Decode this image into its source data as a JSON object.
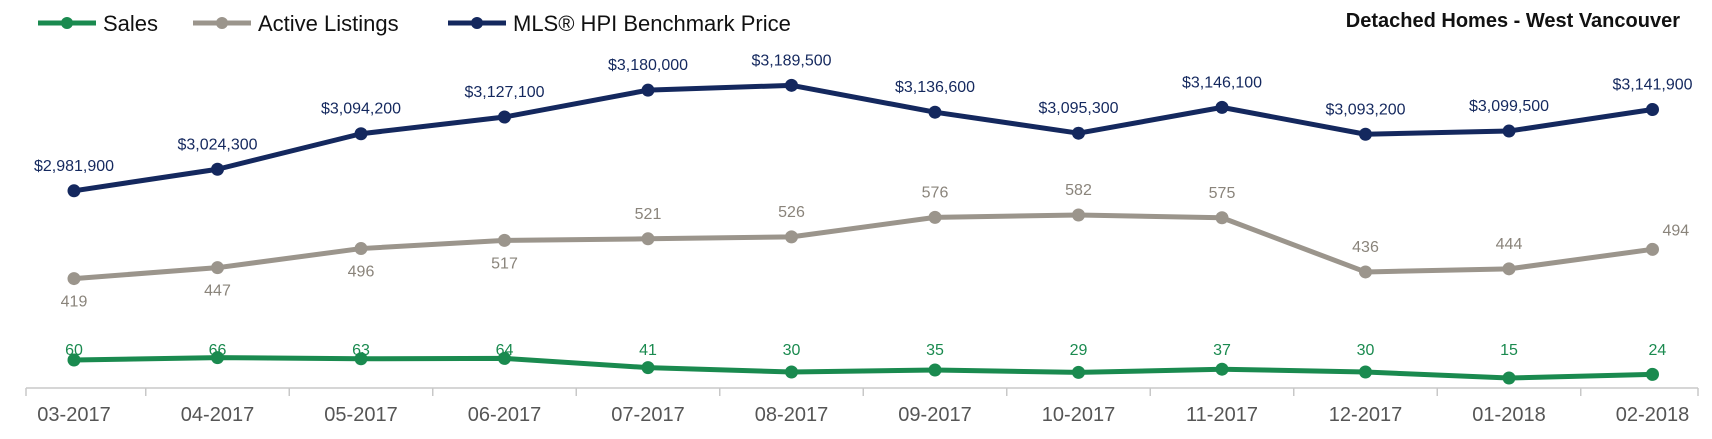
{
  "chart_data": {
    "type": "line",
    "title": "Detached Homes - West Vancouver",
    "categories": [
      "03-2017",
      "04-2017",
      "05-2017",
      "06-2017",
      "07-2017",
      "08-2017",
      "09-2017",
      "10-2017",
      "11-2017",
      "12-2017",
      "01-2018",
      "02-2018"
    ],
    "legend_position": "top-left",
    "grid": false,
    "series": [
      {
        "name": "Sales",
        "color": "#1a8a4f",
        "values": [
          60,
          66,
          63,
          64,
          41,
          30,
          35,
          29,
          37,
          30,
          15,
          24
        ],
        "labels": [
          "60",
          "66",
          "63",
          "64",
          "41",
          "30",
          "35",
          "29",
          "37",
          "30",
          "15",
          "24"
        ]
      },
      {
        "name": "Active Listings",
        "color": "#9b958c",
        "values": [
          419,
          447,
          496,
          517,
          521,
          526,
          576,
          582,
          575,
          436,
          444,
          494
        ],
        "labels": [
          "419",
          "447",
          "496",
          "517",
          "521",
          "526",
          "576",
          "582",
          "575",
          "436",
          "444",
          "494"
        ]
      },
      {
        "name": "MLS® HPI Benchmark Price",
        "color": "#14285e",
        "values": [
          2981900,
          3024300,
          3094200,
          3127100,
          3180000,
          3189500,
          3136600,
          3095300,
          3146100,
          3093200,
          3099500,
          3141900
        ],
        "labels": [
          "$2,981,900",
          "$3,024,300",
          "$3,094,200",
          "$3,127,100",
          "$3,180,000",
          "$3,189,500",
          "$3,136,600",
          "$3,095,300",
          "$3,146,100",
          "$3,093,200",
          "$3,099,500",
          "$3,141,900"
        ]
      }
    ]
  }
}
